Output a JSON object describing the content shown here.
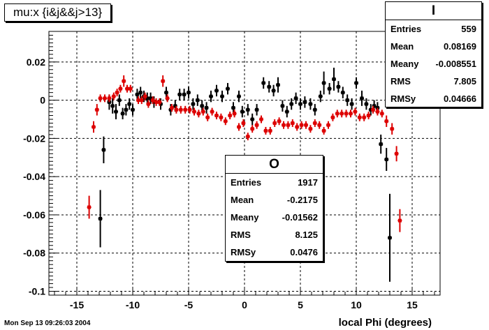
{
  "title": "mu:x {i&j&&j>13}",
  "timestamp": "Mon Sep 13 09:26:03 2004",
  "stats_boxes": [
    {
      "name": "I",
      "rows": [
        {
          "label": "Entries",
          "value": "559"
        },
        {
          "label": "Mean",
          "value": "0.08169"
        },
        {
          "label": "Meany",
          "value": "-0.008551"
        },
        {
          "label": "RMS",
          "value": "7.805"
        },
        {
          "label": "RMSy",
          "value": "0.04666"
        }
      ]
    },
    {
      "name": "O",
      "rows": [
        {
          "label": "Entries",
          "value": "1917"
        },
        {
          "label": "Mean",
          "value": "-0.2175"
        },
        {
          "label": "Meany",
          "value": "-0.01562"
        },
        {
          "label": "RMS",
          "value": "8.125"
        },
        {
          "label": "RMSy",
          "value": "0.0476"
        }
      ]
    }
  ],
  "chart_data": {
    "type": "scatter",
    "title": "mu:x {i&j&&j>13}",
    "xlabel": "local Phi (degrees)",
    "ylabel": "",
    "xlim": [
      -17.5,
      17.5
    ],
    "ylim": [
      -0.102,
      0.036
    ],
    "xticks": [
      -15,
      -10,
      -5,
      0,
      5,
      10,
      15
    ],
    "yticks": [
      0.02,
      0,
      -0.02,
      -0.04,
      -0.06,
      -0.08,
      -0.1
    ],
    "grid": true,
    "series": [
      {
        "name": "I",
        "color": "#000000",
        "points": [
          {
            "x": -12.9,
            "y": -0.062,
            "err": 0.015
          },
          {
            "x": -12.6,
            "y": -0.026,
            "err": 0.007
          },
          {
            "x": -12.1,
            "y": -0.001,
            "err": 0.004
          },
          {
            "x": -11.8,
            "y": -0.003,
            "err": 0.004
          },
          {
            "x": -11.5,
            "y": -0.006,
            "err": 0.004
          },
          {
            "x": -11.2,
            "y": 0.0,
            "err": 0.003
          },
          {
            "x": -10.9,
            "y": -0.007,
            "err": 0.003
          },
          {
            "x": -10.6,
            "y": -0.005,
            "err": 0.003
          },
          {
            "x": -10.3,
            "y": -0.002,
            "err": 0.003
          },
          {
            "x": -10.0,
            "y": -0.005,
            "err": 0.003
          },
          {
            "x": -9.6,
            "y": 0.003,
            "err": 0.003
          },
          {
            "x": -9.3,
            "y": 0.004,
            "err": 0.003
          },
          {
            "x": -9.0,
            "y": 0.002,
            "err": 0.003
          },
          {
            "x": -8.7,
            "y": 0.001,
            "err": 0.003
          },
          {
            "x": -8.4,
            "y": 0.001,
            "err": 0.003
          },
          {
            "x": -8.1,
            "y": -0.001,
            "err": 0.003
          },
          {
            "x": -7.5,
            "y": -0.002,
            "err": 0.003
          },
          {
            "x": -7.0,
            "y": 0.004,
            "err": 0.003
          },
          {
            "x": -6.6,
            "y": -0.005,
            "err": 0.003
          },
          {
            "x": -6.2,
            "y": -0.003,
            "err": 0.003
          },
          {
            "x": -5.8,
            "y": 0.003,
            "err": 0.003
          },
          {
            "x": -5.4,
            "y": 0.003,
            "err": 0.003
          },
          {
            "x": -5.0,
            "y": 0.004,
            "err": 0.003
          },
          {
            "x": -4.6,
            "y": -0.002,
            "err": 0.003
          },
          {
            "x": -4.2,
            "y": 0.0,
            "err": 0.003
          },
          {
            "x": -3.8,
            "y": -0.003,
            "err": 0.003
          },
          {
            "x": -3.4,
            "y": -0.004,
            "err": 0.003
          },
          {
            "x": -3.0,
            "y": 0.002,
            "err": 0.003
          },
          {
            "x": -2.5,
            "y": 0.005,
            "err": 0.003
          },
          {
            "x": -2.0,
            "y": 0.002,
            "err": 0.003
          },
          {
            "x": -1.5,
            "y": 0.006,
            "err": 0.003
          },
          {
            "x": -1.0,
            "y": -0.004,
            "err": 0.003
          },
          {
            "x": -0.5,
            "y": 0.002,
            "err": 0.003
          },
          {
            "x": -0.2,
            "y": -0.006,
            "err": 0.003
          },
          {
            "x": 0.3,
            "y": -0.005,
            "err": 0.003
          },
          {
            "x": 0.7,
            "y": -0.01,
            "err": 0.003
          },
          {
            "x": 1.1,
            "y": -0.005,
            "err": 0.003
          },
          {
            "x": 1.7,
            "y": 0.009,
            "err": 0.003
          },
          {
            "x": 2.2,
            "y": 0.007,
            "err": 0.003
          },
          {
            "x": 2.6,
            "y": 0.005,
            "err": 0.003
          },
          {
            "x": 3.0,
            "y": 0.008,
            "err": 0.004
          },
          {
            "x": 3.4,
            "y": -0.003,
            "err": 0.003
          },
          {
            "x": 3.8,
            "y": -0.006,
            "err": 0.003
          },
          {
            "x": 4.2,
            "y": -0.002,
            "err": 0.003
          },
          {
            "x": 4.6,
            "y": 0.001,
            "err": 0.003
          },
          {
            "x": 5.0,
            "y": -0.002,
            "err": 0.003
          },
          {
            "x": 5.4,
            "y": -0.001,
            "err": 0.003
          },
          {
            "x": 5.9,
            "y": -0.002,
            "err": 0.003
          },
          {
            "x": 6.3,
            "y": -0.005,
            "err": 0.003
          },
          {
            "x": 6.8,
            "y": 0.002,
            "err": 0.003
          },
          {
            "x": 7.1,
            "y": 0.009,
            "err": 0.006
          },
          {
            "x": 7.6,
            "y": 0.006,
            "err": 0.003
          },
          {
            "x": 8.0,
            "y": 0.011,
            "err": 0.006
          },
          {
            "x": 8.4,
            "y": 0.007,
            "err": 0.003
          },
          {
            "x": 8.8,
            "y": 0.004,
            "err": 0.003
          },
          {
            "x": 9.2,
            "y": 0.0,
            "err": 0.003
          },
          {
            "x": 9.6,
            "y": -0.002,
            "err": 0.003
          },
          {
            "x": 10.0,
            "y": 0.009,
            "err": 0.003
          },
          {
            "x": 10.5,
            "y": 0.001,
            "err": 0.004
          },
          {
            "x": 10.9,
            "y": -0.002,
            "err": 0.003
          },
          {
            "x": 11.3,
            "y": -0.005,
            "err": 0.003
          },
          {
            "x": 11.6,
            "y": -0.003,
            "err": 0.003
          },
          {
            "x": 11.9,
            "y": -0.004,
            "err": 0.003
          },
          {
            "x": 12.2,
            "y": -0.023,
            "err": 0.005
          },
          {
            "x": 12.7,
            "y": -0.031,
            "err": 0.006
          },
          {
            "x": 13.0,
            "y": -0.072,
            "err": 0.023
          }
        ]
      },
      {
        "name": "O",
        "color": "#dd0000",
        "points": [
          {
            "x": -13.9,
            "y": -0.056,
            "err": 0.006
          },
          {
            "x": -13.5,
            "y": -0.014,
            "err": 0.003
          },
          {
            "x": -13.2,
            "y": -0.005,
            "err": 0.003
          },
          {
            "x": -12.9,
            "y": 0.001,
            "err": 0.002
          },
          {
            "x": -12.5,
            "y": 0.001,
            "err": 0.002
          },
          {
            "x": -12.1,
            "y": 0.001,
            "err": 0.002
          },
          {
            "x": -11.7,
            "y": 0.002,
            "err": 0.002
          },
          {
            "x": -11.4,
            "y": 0.004,
            "err": 0.002
          },
          {
            "x": -11.1,
            "y": 0.006,
            "err": 0.002
          },
          {
            "x": -10.8,
            "y": 0.01,
            "err": 0.003
          },
          {
            "x": -10.5,
            "y": 0.006,
            "err": 0.002
          },
          {
            "x": -10.2,
            "y": 0.006,
            "err": 0.002
          },
          {
            "x": -9.5,
            "y": 0.0,
            "err": 0.002
          },
          {
            "x": -9.2,
            "y": 0.0,
            "err": 0.002
          },
          {
            "x": -8.9,
            "y": 0.002,
            "err": 0.002
          },
          {
            "x": -8.6,
            "y": -0.002,
            "err": 0.002
          },
          {
            "x": -8.2,
            "y": 0.0,
            "err": 0.002
          },
          {
            "x": -7.9,
            "y": -0.001,
            "err": 0.002
          },
          {
            "x": -7.6,
            "y": -0.001,
            "err": 0.002
          },
          {
            "x": -7.3,
            "y": 0.01,
            "err": 0.003
          },
          {
            "x": -6.9,
            "y": 0.001,
            "err": 0.002
          },
          {
            "x": -6.5,
            "y": -0.004,
            "err": 0.002
          },
          {
            "x": -6.1,
            "y": -0.005,
            "err": 0.002
          },
          {
            "x": -5.7,
            "y": -0.005,
            "err": 0.002
          },
          {
            "x": -5.3,
            "y": -0.005,
            "err": 0.002
          },
          {
            "x": -4.9,
            "y": -0.005,
            "err": 0.002
          },
          {
            "x": -4.5,
            "y": -0.006,
            "err": 0.002
          },
          {
            "x": -4.1,
            "y": -0.007,
            "err": 0.002
          },
          {
            "x": -3.7,
            "y": -0.006,
            "err": 0.002
          },
          {
            "x": -3.3,
            "y": -0.009,
            "err": 0.002
          },
          {
            "x": -2.9,
            "y": -0.006,
            "err": 0.002
          },
          {
            "x": -2.5,
            "y": -0.008,
            "err": 0.002
          },
          {
            "x": -2.1,
            "y": -0.009,
            "err": 0.002
          },
          {
            "x": -1.7,
            "y": -0.011,
            "err": 0.002
          },
          {
            "x": -1.3,
            "y": -0.008,
            "err": 0.002
          },
          {
            "x": -0.9,
            "y": -0.007,
            "err": 0.002
          },
          {
            "x": -0.5,
            "y": -0.014,
            "err": 0.002
          },
          {
            "x": -0.1,
            "y": -0.012,
            "err": 0.002
          },
          {
            "x": 0.3,
            "y": -0.019,
            "err": 0.002
          },
          {
            "x": 0.7,
            "y": -0.015,
            "err": 0.002
          },
          {
            "x": 1.1,
            "y": -0.013,
            "err": 0.002
          },
          {
            "x": 1.5,
            "y": -0.01,
            "err": 0.002
          },
          {
            "x": 1.9,
            "y": -0.016,
            "err": 0.002
          },
          {
            "x": 2.3,
            "y": -0.016,
            "err": 0.002
          },
          {
            "x": 2.7,
            "y": -0.012,
            "err": 0.002
          },
          {
            "x": 3.1,
            "y": -0.011,
            "err": 0.002
          },
          {
            "x": 3.5,
            "y": -0.013,
            "err": 0.002
          },
          {
            "x": 3.9,
            "y": -0.013,
            "err": 0.002
          },
          {
            "x": 4.3,
            "y": -0.012,
            "err": 0.002
          },
          {
            "x": 4.7,
            "y": -0.014,
            "err": 0.002
          },
          {
            "x": 5.1,
            "y": -0.013,
            "err": 0.002
          },
          {
            "x": 5.5,
            "y": -0.013,
            "err": 0.002
          },
          {
            "x": 5.9,
            "y": -0.015,
            "err": 0.002
          },
          {
            "x": 6.3,
            "y": -0.012,
            "err": 0.002
          },
          {
            "x": 6.7,
            "y": -0.013,
            "err": 0.002
          },
          {
            "x": 7.1,
            "y": -0.016,
            "err": 0.002
          },
          {
            "x": 7.5,
            "y": -0.013,
            "err": 0.002
          },
          {
            "x": 7.9,
            "y": -0.009,
            "err": 0.002
          },
          {
            "x": 8.3,
            "y": -0.007,
            "err": 0.002
          },
          {
            "x": 8.7,
            "y": -0.007,
            "err": 0.002
          },
          {
            "x": 9.1,
            "y": -0.007,
            "err": 0.002
          },
          {
            "x": 9.5,
            "y": -0.007,
            "err": 0.002
          },
          {
            "x": 9.9,
            "y": -0.006,
            "err": 0.002
          },
          {
            "x": 10.3,
            "y": -0.009,
            "err": 0.002
          },
          {
            "x": 10.7,
            "y": -0.009,
            "err": 0.002
          },
          {
            "x": 11.1,
            "y": -0.008,
            "err": 0.002
          },
          {
            "x": 11.5,
            "y": -0.005,
            "err": 0.002
          },
          {
            "x": 11.9,
            "y": -0.006,
            "err": 0.002
          },
          {
            "x": 12.3,
            "y": -0.007,
            "err": 0.002
          },
          {
            "x": 12.7,
            "y": -0.011,
            "err": 0.003
          },
          {
            "x": 13.2,
            "y": -0.015,
            "err": 0.003
          },
          {
            "x": 13.6,
            "y": -0.028,
            "err": 0.004
          },
          {
            "x": 13.9,
            "y": -0.063,
            "err": 0.006
          }
        ]
      }
    ]
  }
}
